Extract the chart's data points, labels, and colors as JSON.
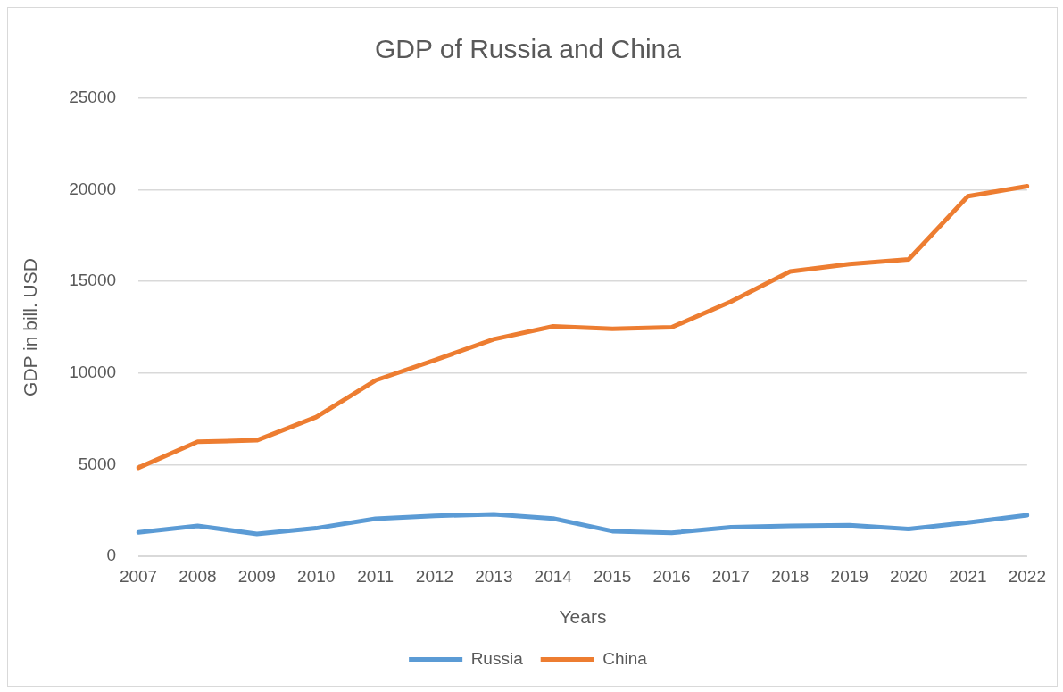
{
  "chart_data": {
    "type": "line",
    "title": "GDP of Russia and China",
    "xlabel": "Years",
    "ylabel": "GDP in bill. USD",
    "categories": [
      "2007",
      "2008",
      "2009",
      "2010",
      "2011",
      "2012",
      "2013",
      "2014",
      "2015",
      "2016",
      "2017",
      "2018",
      "2019",
      "2020",
      "2021",
      "2022"
    ],
    "series": [
      {
        "name": "Russia",
        "color": "#5b9bd5",
        "values": [
          1300,
          1660,
          1220,
          1530,
          2050,
          2210,
          2290,
          2060,
          1370,
          1280,
          1580,
          1660,
          1690,
          1490,
          1840,
          2240
        ]
      },
      {
        "name": "China",
        "color": "#ed7d31",
        "values": [
          4830,
          6250,
          6330,
          7600,
          9600,
          10700,
          11850,
          12550,
          12420,
          12500,
          13900,
          15550,
          15950,
          16200,
          19650,
          20200
        ]
      }
    ],
    "ylim": [
      0,
      25000
    ],
    "yticks": [
      0,
      5000,
      10000,
      15000,
      20000,
      25000
    ],
    "grid": "y",
    "legend": "bottom",
    "marker": "none",
    "line_style": "solid"
  }
}
